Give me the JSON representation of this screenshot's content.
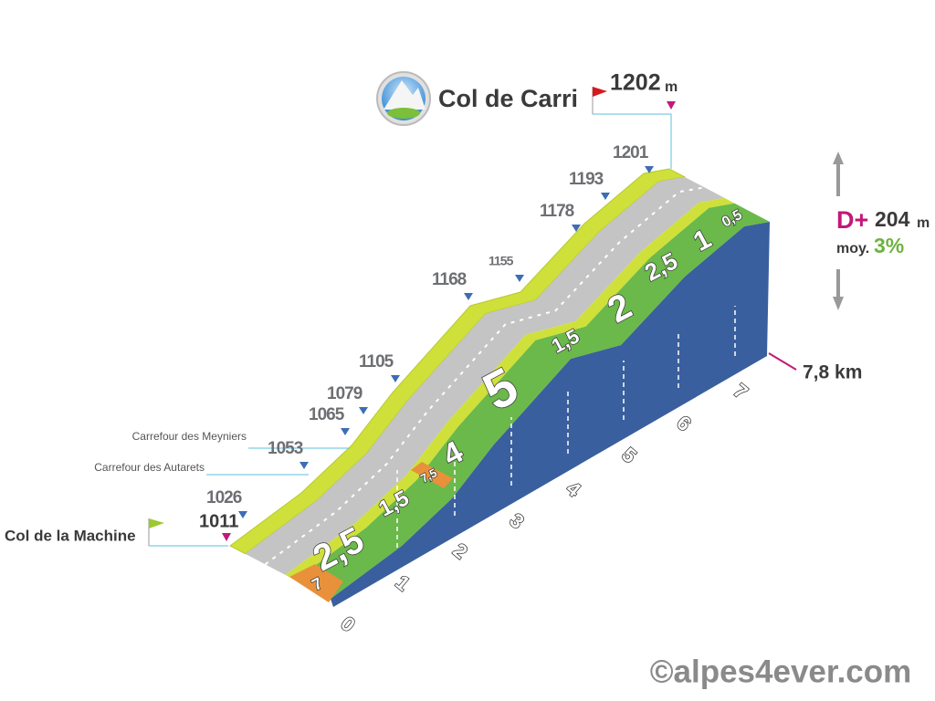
{
  "summit": {
    "name": "Col de Carri",
    "elevation": 1202,
    "unit": "m"
  },
  "start": {
    "name": "Col de la Machine",
    "elevation": 1011
  },
  "waypoints": [
    {
      "label": "Carrefour des Meyniers"
    },
    {
      "label": "Carrefour des Autarets"
    }
  ],
  "elevations": [
    1026,
    1053,
    1065,
    1079,
    1105,
    1168,
    1155,
    1178,
    1193,
    1201
  ],
  "stats": {
    "gain_label": "D+",
    "gain": 204,
    "gain_unit": "m",
    "average_label": "moy.",
    "average": "3%",
    "distance": "7,8 km"
  },
  "km_markers": [
    0,
    1,
    2,
    3,
    4,
    5,
    6,
    7
  ],
  "gradients": [
    "7",
    "2,5",
    "1,5",
    "7,5",
    "4",
    "5",
    "1,5",
    "2",
    "2,5",
    "1",
    "0,5"
  ],
  "credit": "©alpes4ever.com"
}
